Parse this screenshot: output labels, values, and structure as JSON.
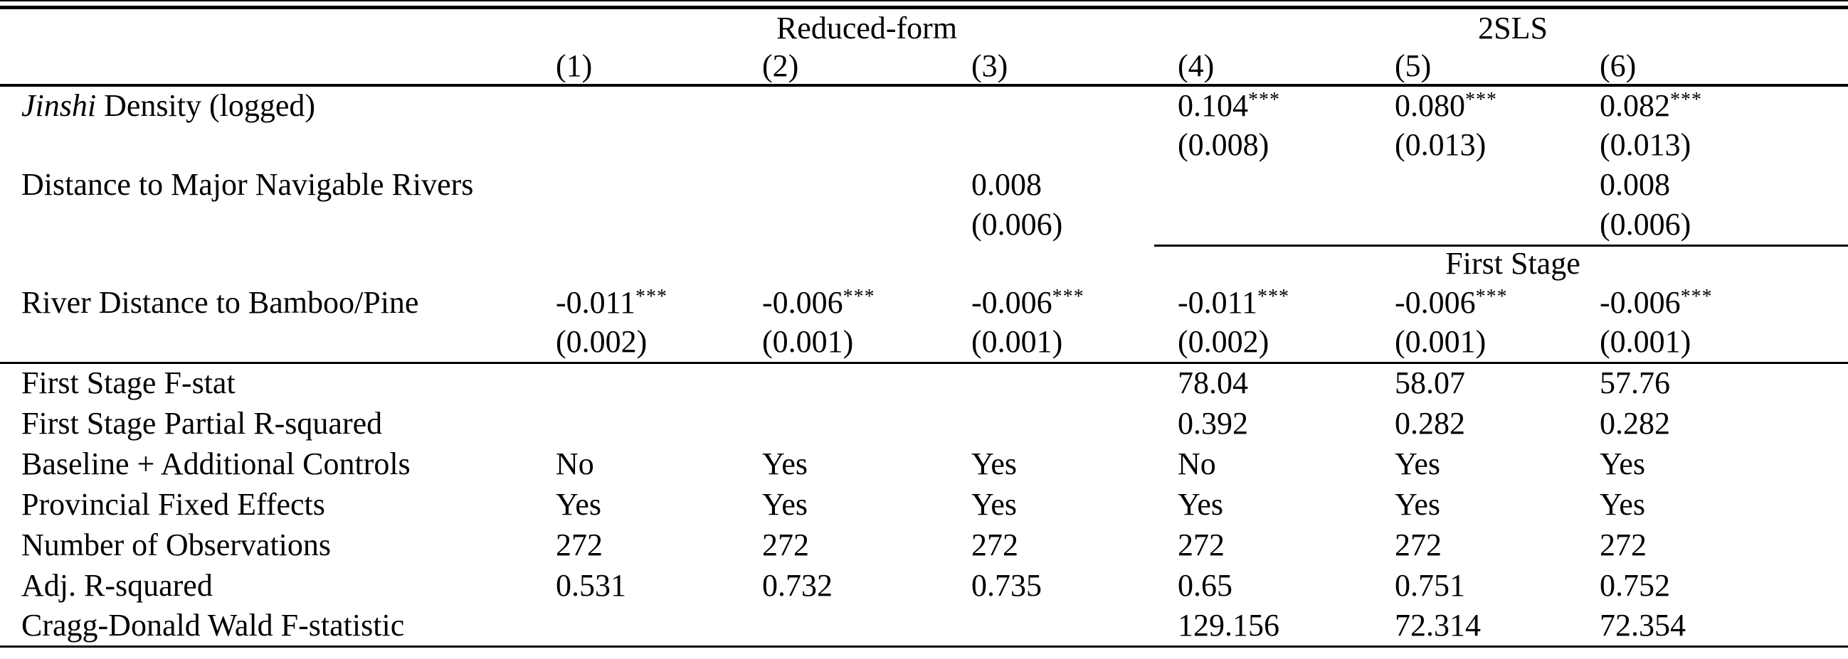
{
  "page": {
    "background": "#ffffff",
    "text_color": "#000000",
    "rule_color": "#000000"
  },
  "table": {
    "groups": [
      {
        "label": "Reduced-form",
        "colspan": 3
      },
      {
        "label": "2SLS",
        "colspan": 3
      }
    ],
    "column_numbers": [
      "(1)",
      "(2)",
      "(3)",
      "(4)",
      "(5)",
      "(6)"
    ],
    "first_stage_label": "First Stage",
    "rows": [
      {
        "kind": "coef",
        "name": "jinshi-density-coef",
        "label_parts": [
          {
            "text": "Jinshi",
            "italic": true
          },
          {
            "text": " Density (logged)",
            "italic": false
          }
        ],
        "values": [
          "",
          "",
          "",
          "0.104***",
          "0.080***",
          "0.082***"
        ]
      },
      {
        "kind": "se",
        "name": "jinshi-density-se",
        "label_parts": [],
        "values": [
          "",
          "",
          "",
          "(0.008)",
          "(0.013)",
          "(0.013)"
        ]
      },
      {
        "kind": "coef",
        "name": "distance-navigable-rivers-coef",
        "label_parts": [
          {
            "text": "Distance to Major Navigable Rivers",
            "italic": false
          }
        ],
        "values": [
          "",
          "",
          "0.008",
          "",
          "",
          "0.008"
        ]
      },
      {
        "kind": "se",
        "name": "distance-navigable-rivers-se",
        "label_parts": [],
        "values": [
          "",
          "",
          "(0.006)",
          "",
          "",
          "(0.006)"
        ]
      },
      {
        "kind": "subheader",
        "name": "first-stage-subheader",
        "label_parts": [],
        "values": []
      },
      {
        "kind": "coef",
        "name": "river-distance-bamboo-pine-coef",
        "label_parts": [
          {
            "text": "River Distance to Bamboo/Pine",
            "italic": false
          }
        ],
        "values": [
          "-0.011***",
          "-0.006***",
          "-0.006***",
          "-0.011***",
          "-0.006***",
          "-0.006***"
        ]
      },
      {
        "kind": "se",
        "name": "river-distance-bamboo-pine-se",
        "rule_after": "full",
        "label_parts": [],
        "values": [
          "(0.002)",
          "(0.001)",
          "(0.001)",
          "(0.002)",
          "(0.001)",
          "(0.001)"
        ]
      },
      {
        "kind": "stat",
        "name": "first-stage-f-stat",
        "label_parts": [
          {
            "text": "First Stage F-stat",
            "italic": false
          }
        ],
        "values": [
          "",
          "",
          "",
          "78.04",
          "58.07",
          "57.76"
        ]
      },
      {
        "kind": "stat",
        "name": "first-stage-partial-r-squared",
        "label_parts": [
          {
            "text": "First Stage Partial R-squared",
            "italic": false
          }
        ],
        "values": [
          "",
          "",
          "",
          "0.392",
          "0.282",
          "0.282"
        ]
      },
      {
        "kind": "stat",
        "name": "baseline-additional-controls",
        "label_parts": [
          {
            "text": "Baseline + Additional Controls",
            "italic": false
          }
        ],
        "values": [
          "No",
          "Yes",
          "Yes",
          "No",
          "Yes",
          "Yes"
        ]
      },
      {
        "kind": "stat",
        "name": "provincial-fixed-effects",
        "label_parts": [
          {
            "text": "Provincial Fixed Effects",
            "italic": false
          }
        ],
        "values": [
          "Yes",
          "Yes",
          "Yes",
          "Yes",
          "Yes",
          "Yes"
        ]
      },
      {
        "kind": "stat",
        "name": "number-of-observations",
        "label_parts": [
          {
            "text": "Number of Observations",
            "italic": false
          }
        ],
        "values": [
          "272",
          "272",
          "272",
          "272",
          "272",
          "272"
        ]
      },
      {
        "kind": "stat",
        "name": "adj-r-squared",
        "label_parts": [
          {
            "text": "Adj. R-squared",
            "italic": false
          }
        ],
        "values": [
          "0.531",
          "0.732",
          "0.735",
          "0.65",
          "0.751",
          "0.752"
        ]
      },
      {
        "kind": "stat",
        "name": "cragg-donald-wald-f-statistic",
        "label_parts": [
          {
            "text": "Cragg-Donald Wald F-statistic",
            "italic": false
          }
        ],
        "values": [
          "",
          "",
          "",
          "129.156",
          "72.314",
          "72.354"
        ]
      }
    ]
  }
}
